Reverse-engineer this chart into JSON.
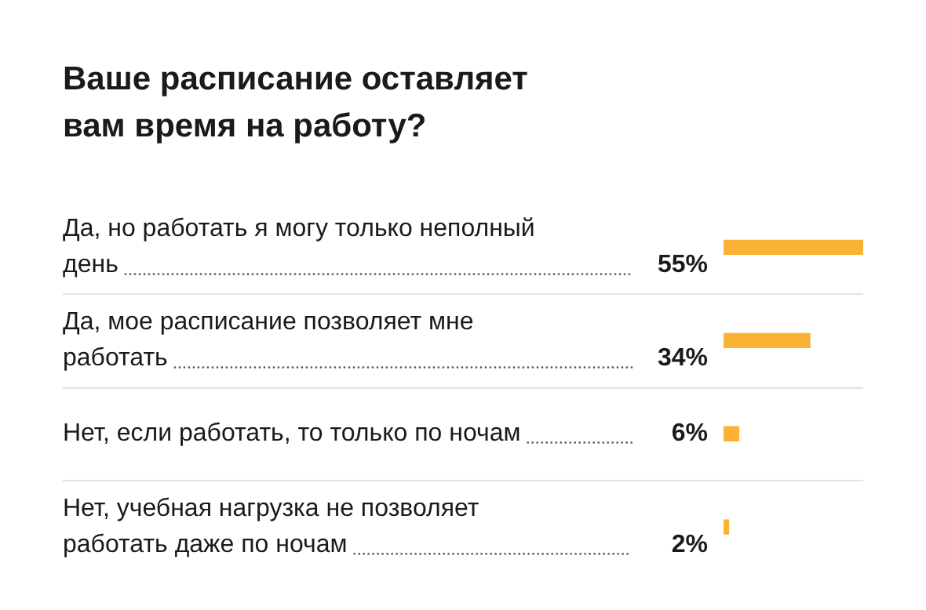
{
  "chart_data": {
    "type": "bar",
    "orientation": "horizontal",
    "title": "Ваше расписание оставляет вам время на работу?",
    "categories": [
      "Да, но работать я могу только неполный день",
      "Да, мое расписание позволяет мне работать",
      "Нет, если работать, то только по ночам",
      "Нет, учебная нагрузка не позволяет работать даже по ночам"
    ],
    "values": [
      55,
      34,
      6,
      2
    ],
    "value_labels": [
      "55%",
      "34%",
      "6%",
      "2%"
    ],
    "color": "#f9b233",
    "grid": "y",
    "legend": false,
    "tick_labels": "y"
  }
}
